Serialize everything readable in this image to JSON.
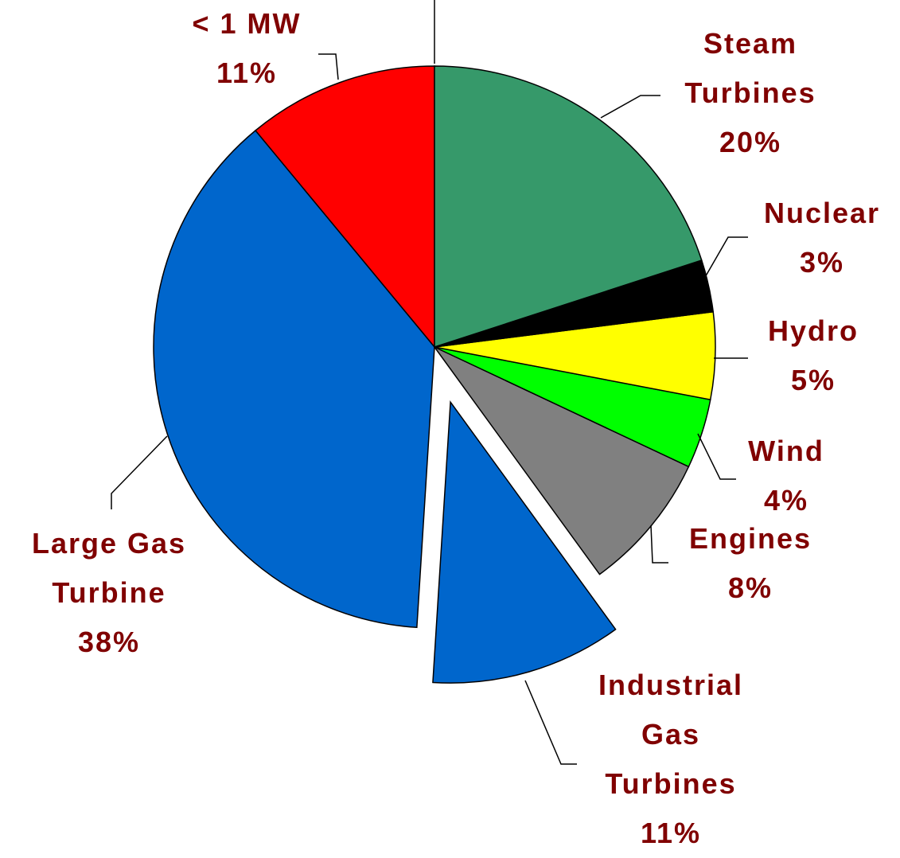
{
  "chart_data": {
    "type": "pie",
    "categories": [
      "Steam Turbines",
      "Nuclear",
      "Hydro",
      "Wind",
      "Engines",
      "Industrial Gas Turbines",
      "Large Gas Turbine",
      "< 1 MW"
    ],
    "values": [
      20,
      3,
      5,
      4,
      8,
      11,
      38,
      11
    ],
    "value_labels": [
      "20%",
      "3%",
      "5%",
      "4%",
      "8%",
      "11%",
      "38%",
      "11%"
    ],
    "colors": [
      "#36996a",
      "#000000",
      "#ffff00",
      "#00ff00",
      "#808080",
      "#0066cc",
      "#0066cc",
      "#ff0000"
    ],
    "exploded": 5
  }
}
